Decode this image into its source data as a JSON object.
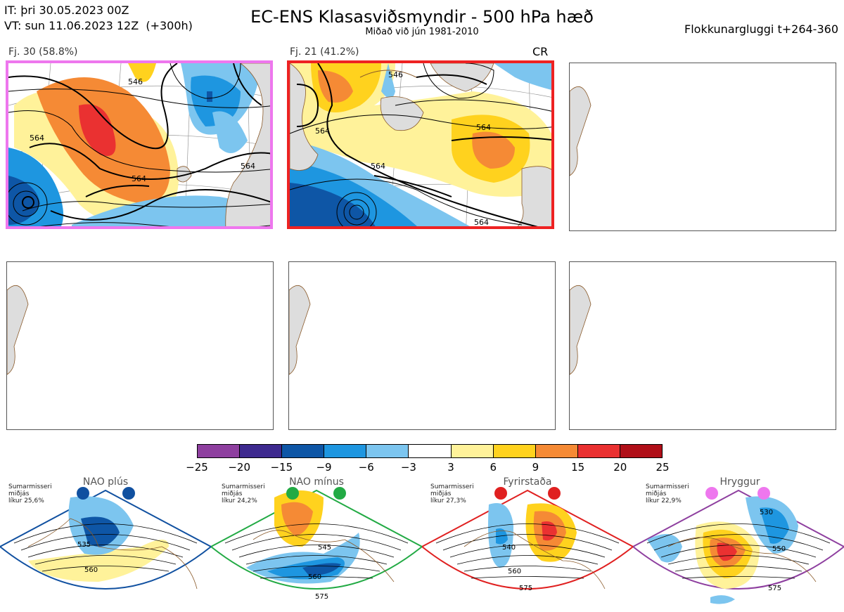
{
  "header": {
    "initial_time": "IT: þri 30.05.2023 00Z",
    "valid_time": "VT: sun 11.06.2023 12Z  (+300h)",
    "title": "EC-ENS Klasasviðsmyndir - 500 hPa hæð",
    "subtitle": "Miðað við jún 1981-2010",
    "window": "Flokkunargluggi t+264-360"
  },
  "panels": [
    {
      "label": "Fj. 30 (58.8%)",
      "border_color": "#ee77ee",
      "contours": [
        "564",
        "546",
        "564",
        "564"
      ]
    },
    {
      "label": "Fj. 21 (41.2%)",
      "border_color": "#ee2222",
      "regime_tag": "CR",
      "contours": [
        "564",
        "546",
        "564",
        "564",
        "564"
      ]
    },
    {
      "label": ""
    },
    {
      "label": ""
    },
    {
      "label": ""
    },
    {
      "label": ""
    }
  ],
  "colorbar": {
    "ticks": [
      "−25",
      "−20",
      "−15",
      "−9",
      "−6",
      "−3",
      "3",
      "6",
      "9",
      "15",
      "20",
      "25"
    ],
    "colors": [
      "#8e3f9f",
      "#3e2a8f",
      "#0e56a6",
      "#1e96e0",
      "#7cc5ef",
      "#ffffff",
      "#fff29a",
      "#ffd21e",
      "#f58a35",
      "#ea3131",
      "#b00f18"
    ]
  },
  "regimes": [
    {
      "name": "NAO plús",
      "note": "Sumarmisseri\nmiðjás\nlíkur 25,6%",
      "color": "#1050a0",
      "contours": [
        "535",
        "560"
      ]
    },
    {
      "name": "NAO mínus",
      "note": "Sumarmisseri\nmiðjás\nlíkur 24,2%",
      "color": "#22aa44",
      "contours": [
        "545",
        "560",
        "575"
      ]
    },
    {
      "name": "Fyrirstaða",
      "note": "Sumarmisseri\nmiðjás\nlíkur 27,3%",
      "color": "#e02020",
      "contours": [
        "540",
        "560",
        "575"
      ]
    },
    {
      "name": "Hryggur",
      "note": "Sumarmisseri\nmiðjás\nlíkur 22,9%",
      "color": "#ee77ee",
      "contours": [
        "530",
        "550",
        "575"
      ]
    }
  ]
}
